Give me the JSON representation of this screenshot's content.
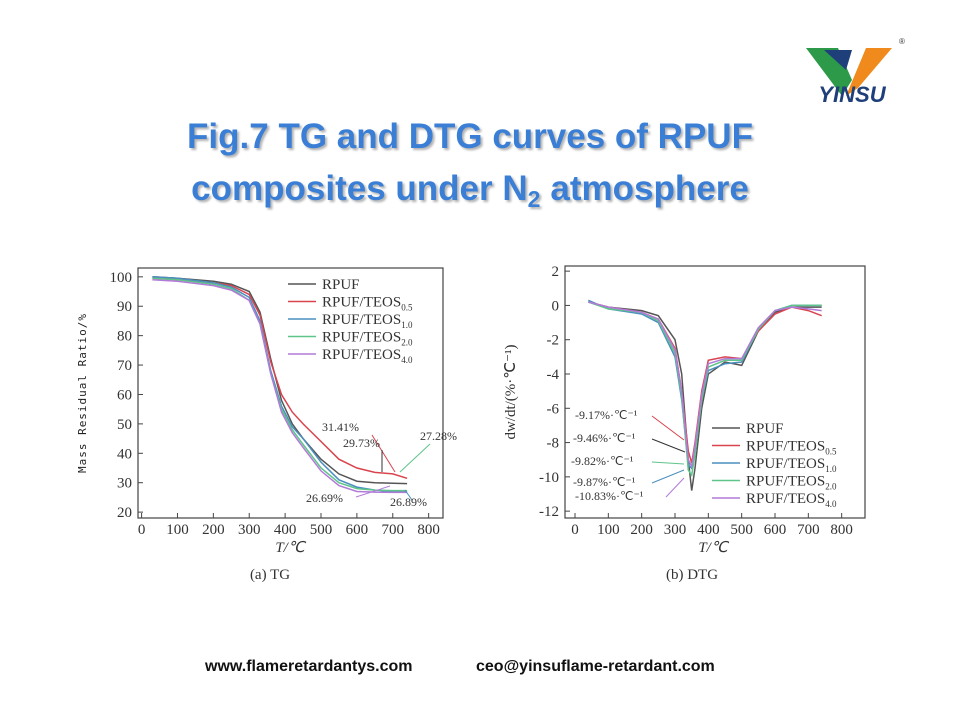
{
  "header": {
    "logo_text": "YINSU",
    "logo_mark": "®",
    "title_line1": "Fig.7 TG and DTG curves of RPUF",
    "title_line2": "composites under N",
    "title_sub": "2",
    "title_end": "atmosphere"
  },
  "footer": {
    "website": "www.flameretardantys.com",
    "email": "ceo@yinsuflame-retardant.com"
  },
  "chart_data": [
    {
      "type": "line",
      "caption": "(a) TG",
      "x_label": "T/℃",
      "y_label": "Mass Residual Ratio/%",
      "xlim": [
        -10,
        840
      ],
      "ylim": [
        18,
        103
      ],
      "xticks": [
        0,
        100,
        200,
        300,
        400,
        500,
        600,
        700,
        800
      ],
      "yticks": [
        20,
        30,
        40,
        50,
        60,
        70,
        80,
        90,
        100
      ],
      "legend": "upper right",
      "x": [
        30,
        100,
        200,
        250,
        300,
        330,
        360,
        390,
        420,
        450,
        500,
        550,
        600,
        650,
        700,
        740
      ],
      "series": [
        {
          "name": "RPUF",
          "color": "#555555",
          "values": [
            100,
            99.5,
            98.5,
            97.5,
            95,
            88,
            72,
            58,
            50,
            45,
            38,
            33,
            30.5,
            30,
            29.8,
            29.7
          ]
        },
        {
          "name": "RPUF/TEOS",
          "name_sub": "0.5",
          "color": "#d9434e",
          "values": [
            99.5,
            99,
            98,
            97,
            94,
            87,
            71,
            60,
            54,
            50,
            44,
            38,
            35,
            33.5,
            33,
            31.5
          ]
        },
        {
          "name": "RPUF/TEOS",
          "name_sub": "1.0",
          "color": "#4a8fc0",
          "values": [
            100,
            99.5,
            98,
            96.5,
            93,
            85,
            68,
            56,
            49,
            45,
            37,
            31,
            28.5,
            27.5,
            27,
            26.9
          ]
        },
        {
          "name": "RPUF/TEOS",
          "name_sub": "2.0",
          "color": "#5ec48a",
          "values": [
            99.5,
            99,
            97.5,
            96,
            92,
            84,
            67,
            55,
            48,
            43,
            35,
            30,
            28,
            27.5,
            27.3,
            27.3
          ]
        },
        {
          "name": "RPUF/TEOS",
          "name_sub": "4.0",
          "color": "#b27ad8",
          "values": [
            99,
            98.5,
            97,
            95.5,
            92,
            84,
            67,
            54,
            47,
            42,
            34,
            29,
            27,
            26.8,
            26.7,
            26.7
          ]
        }
      ],
      "annotations": [
        "31.41%",
        "29.73%",
        "27.28%",
        "26.69%",
        "26.89%"
      ]
    },
    {
      "type": "line",
      "caption": "(b) DTG",
      "x_label": "T/℃",
      "y_label": "dw/dt/(%·℃⁻¹)",
      "xlim": [
        -30,
        870
      ],
      "ylim": [
        -12.4,
        2.3
      ],
      "xticks": [
        0,
        100,
        200,
        300,
        400,
        500,
        600,
        700,
        800
      ],
      "yticks": [
        -12,
        -10,
        -8,
        -6,
        -4,
        -2,
        0,
        2
      ],
      "legend": "lower right",
      "x": [
        40,
        100,
        200,
        250,
        300,
        320,
        340,
        350,
        360,
        380,
        400,
        450,
        500,
        550,
        600,
        650,
        700,
        740
      ],
      "series": [
        {
          "name": "RPUF",
          "color": "#555555",
          "values": [
            0.2,
            -0.1,
            -0.3,
            -0.6,
            -2,
            -4,
            -9,
            -10.8,
            -9.5,
            -6,
            -4,
            -3.3,
            -3.5,
            -1.5,
            -0.4,
            -0.1,
            -0.1,
            -0.1
          ]
        },
        {
          "name": "RPUF/TEOS",
          "name_sub": "0.5",
          "color": "#d9434e",
          "values": [
            0.2,
            -0.1,
            -0.4,
            -0.8,
            -2.5,
            -5,
            -8.5,
            -9.2,
            -8,
            -5,
            -3.2,
            -3,
            -3.1,
            -1.5,
            -0.5,
            -0.1,
            -0.3,
            -0.6
          ]
        },
        {
          "name": "RPUF/TEOS",
          "name_sub": "1.0",
          "color": "#4a8fc0",
          "values": [
            0.3,
            -0.2,
            -0.5,
            -1,
            -3,
            -5.5,
            -9.3,
            -9.5,
            -8.5,
            -5.5,
            -3.8,
            -3.4,
            -3.3,
            -1.4,
            -0.3,
            0,
            0,
            0
          ]
        },
        {
          "name": "RPUF/TEOS",
          "name_sub": "2.0",
          "color": "#5ec48a",
          "values": [
            0.2,
            -0.2,
            -0.4,
            -0.9,
            -2.8,
            -5.3,
            -9.6,
            -9.9,
            -8.7,
            -5.5,
            -3.6,
            -3.2,
            -3.2,
            -1.4,
            -0.3,
            0,
            0,
            0
          ]
        },
        {
          "name": "RPUF/TEOS",
          "name_sub": "4.0",
          "color": "#b27ad8",
          "values": [
            0.2,
            -0.1,
            -0.4,
            -0.8,
            -2.6,
            -5,
            -9,
            -9.4,
            -8.2,
            -5.2,
            -3.4,
            -3.1,
            -3.1,
            -1.3,
            -0.3,
            -0.1,
            -0.2,
            -0.3
          ]
        }
      ],
      "annotations": [
        "-9.17%·℃⁻¹",
        "-9.46%·℃⁻¹",
        "-9.82%·℃⁻¹",
        "-9.87%·℃⁻¹",
        "-10.83%·℃⁻¹"
      ]
    }
  ]
}
